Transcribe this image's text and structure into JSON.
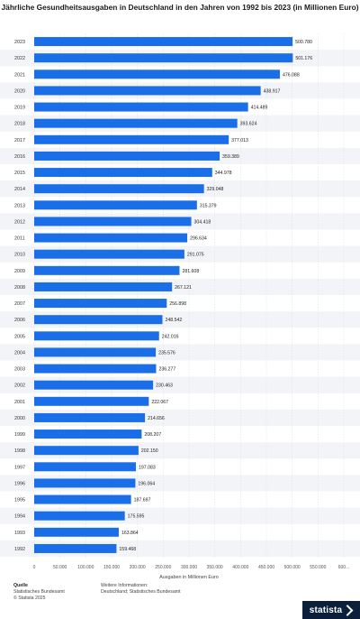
{
  "chart_data": {
    "type": "bar",
    "orientation": "horizontal",
    "title": "Jährliche Gesundheitsausgaben in Deutschland in den Jahren von 1992 bis 2023 (in Millionen Euro)",
    "xlabel": "Ausgaben in Millionen Euro",
    "ylabel": "",
    "xlim": [
      0,
      600000
    ],
    "xticks": [
      "0",
      "50.000",
      "100.000",
      "150.000",
      "200.000",
      "250.000",
      "300.000",
      "350.000",
      "400.000",
      "450.000",
      "500.000",
      "550.000",
      "600..."
    ],
    "grid": true,
    "bar_color": "#1a6ee8",
    "categories": [
      "2023",
      "2022",
      "2021",
      "2020",
      "2019",
      "2018",
      "2017",
      "2016",
      "2015",
      "2014",
      "2013",
      "2012",
      "2011",
      "2010",
      "2009",
      "2008",
      "2007",
      "2006",
      "2005",
      "2004",
      "2003",
      "2002",
      "2001",
      "2000",
      "1999",
      "1998",
      "1997",
      "1996",
      "1995",
      "1994",
      "1993",
      "1992"
    ],
    "values": [
      500780,
      501176,
      476088,
      438917,
      414489,
      393624,
      377013,
      359389,
      344978,
      329048,
      315379,
      304418,
      296634,
      291075,
      281608,
      267121,
      256898,
      248542,
      242016,
      235576,
      236277,
      230463,
      222067,
      214656,
      208207,
      202150,
      197083,
      196064,
      187697,
      175595,
      163864,
      159468
    ],
    "value_labels": [
      "500.780",
      "501.176",
      "476.088",
      "438.917",
      "414.489",
      "393.624",
      "377.013",
      "359.389",
      "344.978",
      "329.048",
      "315.379",
      "304.418",
      "296.634",
      "291.075",
      "281.608",
      "267.121",
      "256.898",
      "248.542",
      "242.016",
      "235.576",
      "236.277",
      "230.463",
      "222.067",
      "214.656",
      "208.207",
      "202.150",
      "197.083",
      "196.064",
      "187.697",
      "175.595",
      "163.864",
      "159.468"
    ]
  },
  "footer": {
    "source_heading": "Quelle",
    "source_lines": [
      "Statistisches Bundesamt",
      "© Statista 2025"
    ],
    "info_heading": "Weitere Informationen:",
    "info_lines": [
      "Deutschland; Statistisches Bundesamt"
    ],
    "brand": "statista"
  }
}
